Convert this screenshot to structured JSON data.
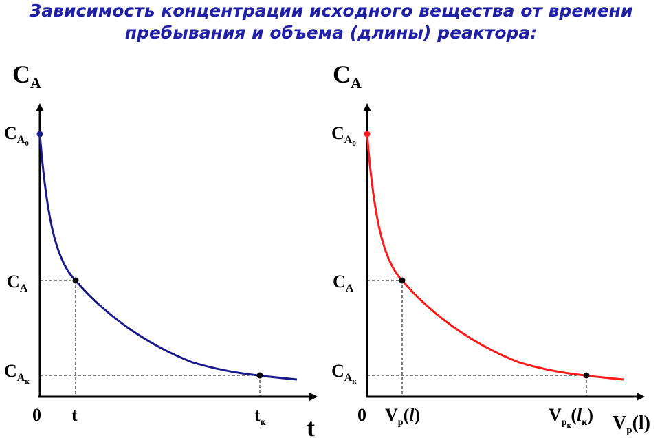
{
  "title": {
    "line1": "Зависимость концентрации исходного вещества от времени",
    "line2": "пребывания и объема (длины) реактора:"
  },
  "colors": {
    "title": "#1f1fa8",
    "curve_left": "#1a1a8c",
    "curve_right": "#ff1a1a"
  },
  "left_graph": {
    "axis_y": {
      "main": "C",
      "sub": "A"
    },
    "axis_x": "t",
    "y_labels": {
      "c0": {
        "main": "C",
        "sub": "A",
        "subsub": "0"
      },
      "c": {
        "main": "C",
        "sub": "A"
      },
      "ck": {
        "main": "C",
        "sub": "A",
        "subsub": "к"
      }
    },
    "x_labels": {
      "origin": "0",
      "t": "t",
      "tk": {
        "main": "t",
        "sub": "к"
      }
    }
  },
  "right_graph": {
    "axis_y": {
      "main": "C",
      "sub": "A"
    },
    "axis_x": {
      "main": "V",
      "sub": "р",
      "paren": "(l)"
    },
    "y_labels": {
      "c0": {
        "main": "C",
        "sub": "A",
        "subsub": "0"
      },
      "c": {
        "main": "C",
        "sub": "A"
      },
      "ck": {
        "main": "C",
        "sub": "A",
        "subsub": "к"
      }
    },
    "x_labels": {
      "origin": "0",
      "v": {
        "main": "V",
        "sub": "р",
        "paren_open": "(",
        "var": "l",
        "paren_close": ")"
      },
      "vk": {
        "main": "V",
        "sub": "р",
        "subsub": "к",
        "paren_open": "(",
        "var": "l",
        "var_sub": "к",
        "paren_close": ")"
      }
    }
  }
}
